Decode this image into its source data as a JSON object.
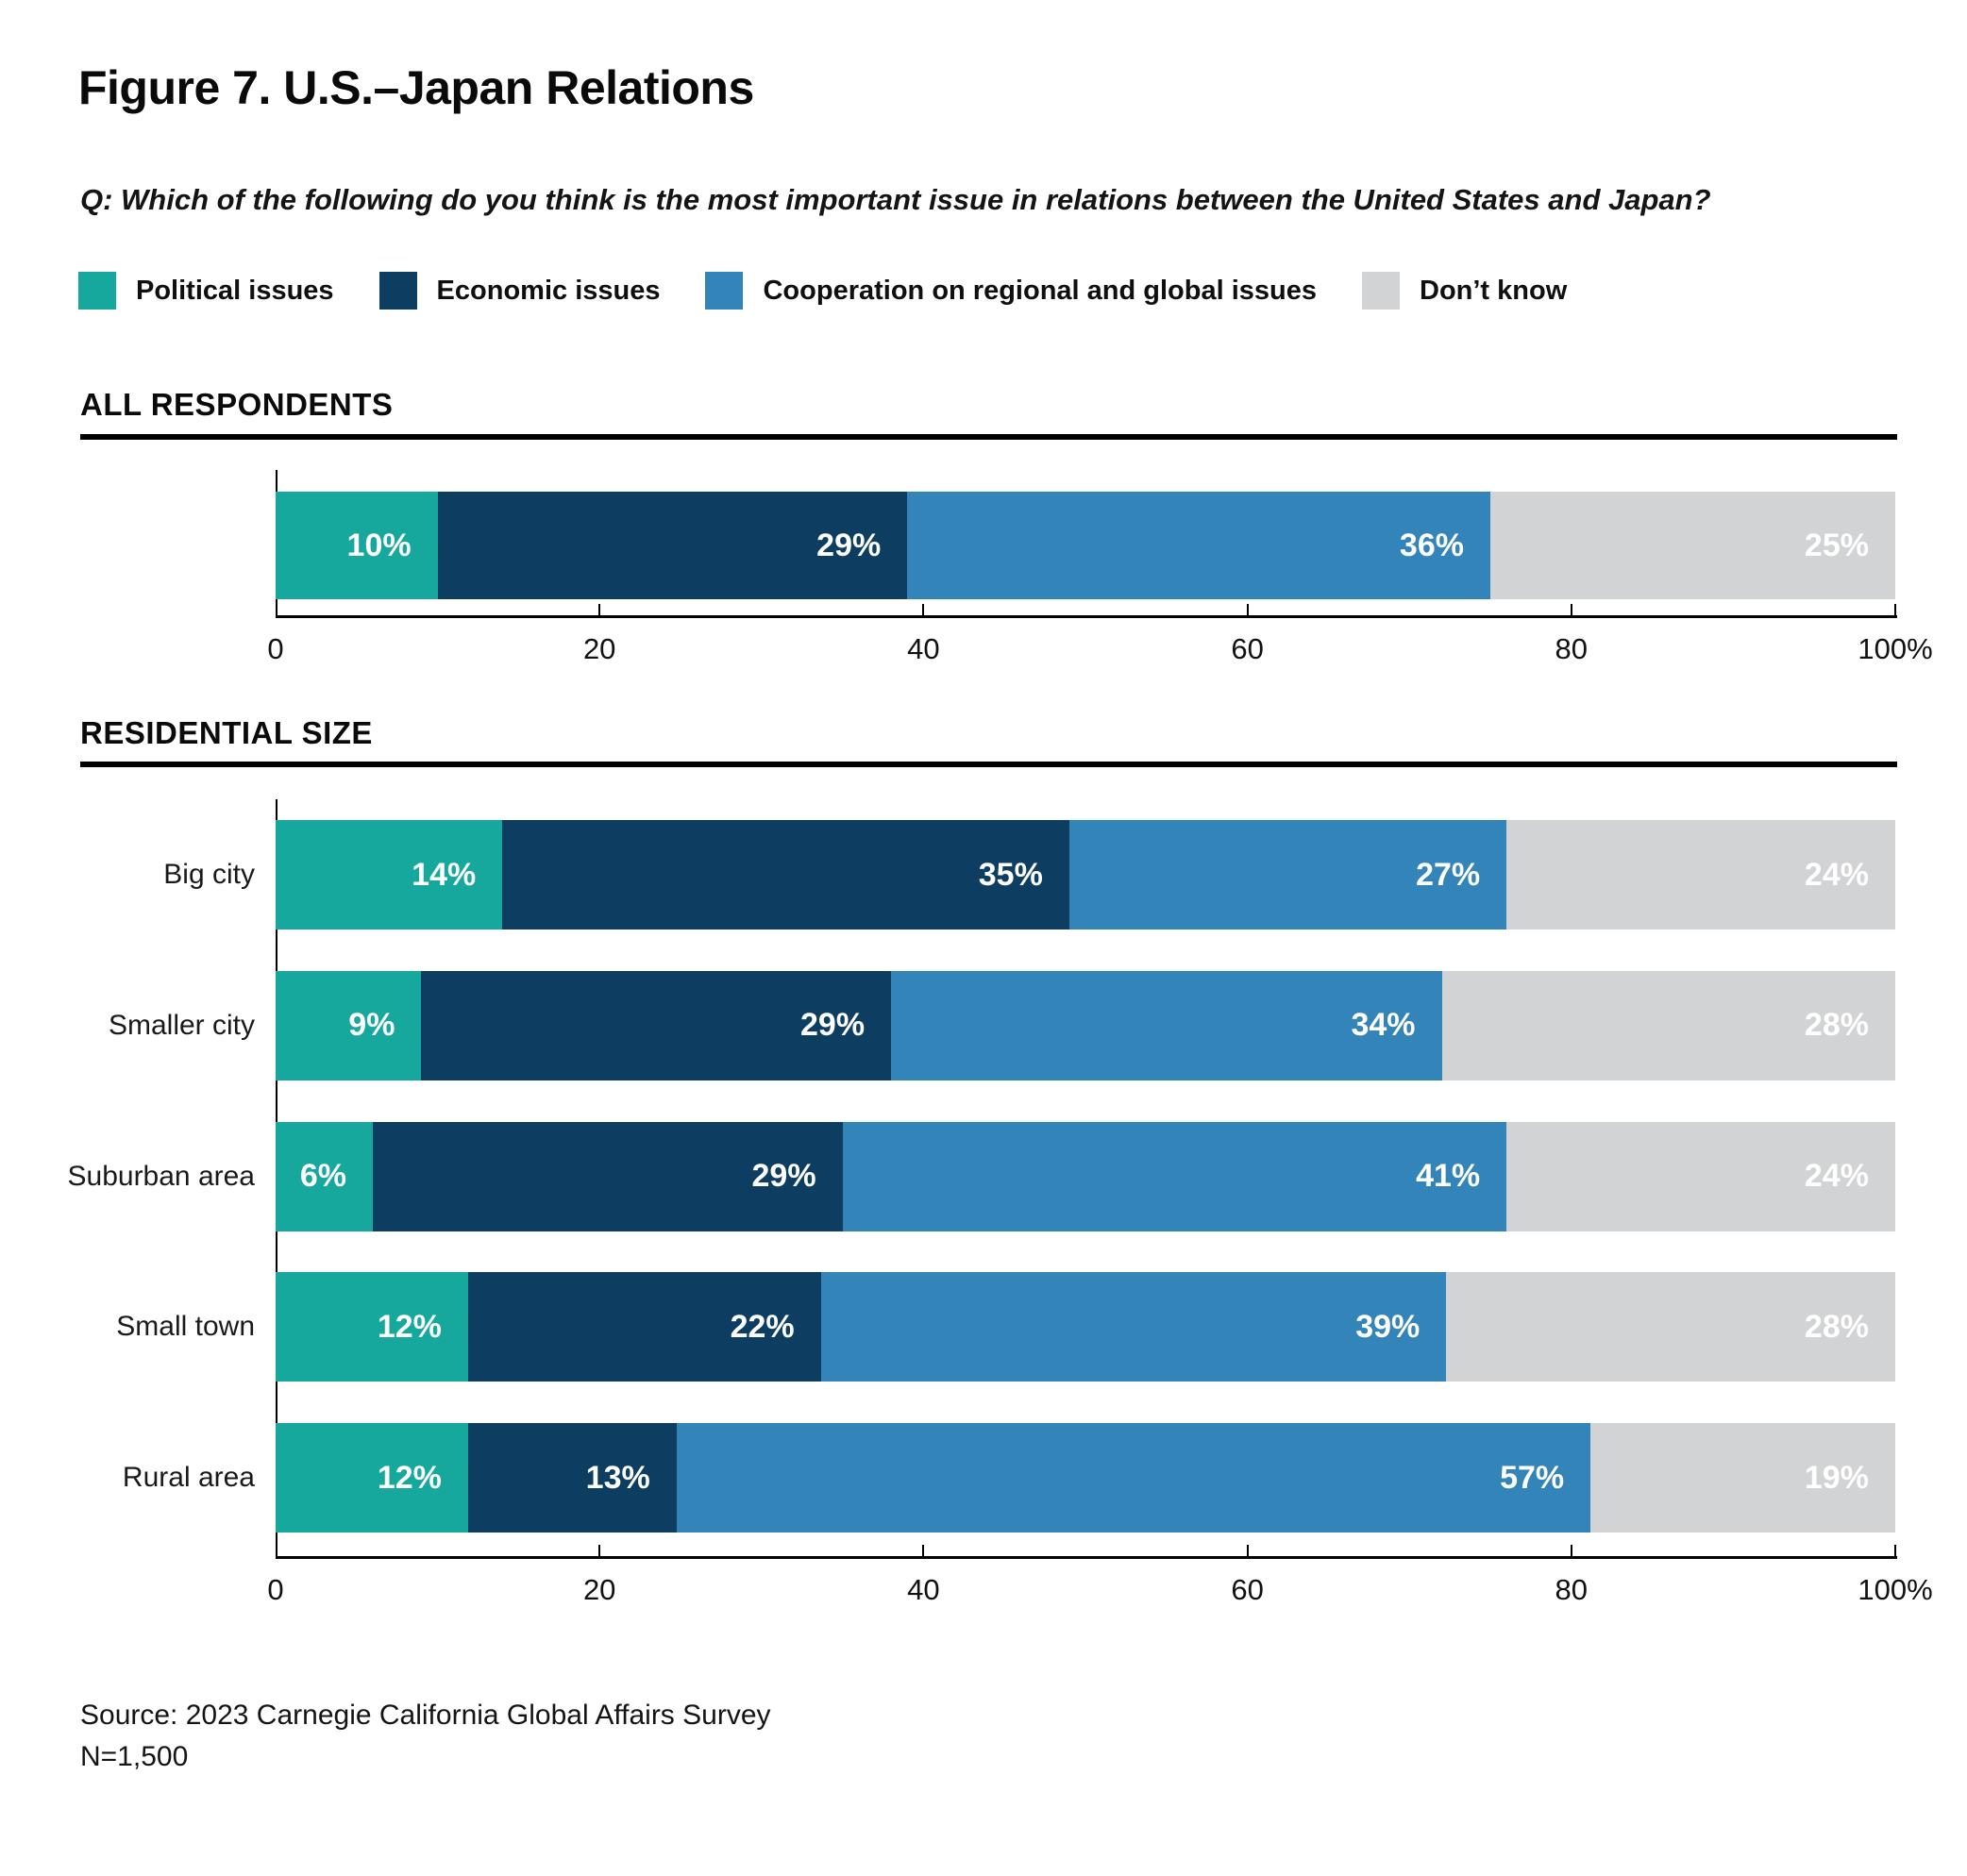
{
  "title": "Figure 7. U.S.–Japan Relations",
  "question": "Q: Which of the following do you think is the most important issue in relations between the United States and Japan?",
  "legend": [
    {
      "label": "Political issues",
      "color": "#16A89D"
    },
    {
      "label": "Economic issues",
      "color": "#0D3D61"
    },
    {
      "label": "Cooperation on regional and global issues",
      "color": "#3384B8"
    },
    {
      "label": "Don’t know",
      "color": "#D2D3D4"
    }
  ],
  "sections": {
    "all_respondents": "ALL RESPONDENTS",
    "residential_size": "RESIDENTIAL SIZE"
  },
  "source": {
    "line1": "Source: 2023 Carnegie California Global Affairs Survey",
    "line2": "N=1,500"
  },
  "chart_data": [
    {
      "type": "bar",
      "stacked": true,
      "orientation": "horizontal",
      "section": "ALL RESPONDENTS",
      "categories": [
        ""
      ],
      "series": [
        {
          "name": "Political issues",
          "values": [
            10
          ]
        },
        {
          "name": "Economic issues",
          "values": [
            29
          ]
        },
        {
          "name": "Cooperation on regional and global issues",
          "values": [
            36
          ]
        },
        {
          "name": "Don’t know",
          "values": [
            25
          ]
        }
      ],
      "xlim": [
        0,
        100
      ],
      "xticks": [
        0,
        20,
        40,
        60,
        80,
        100
      ],
      "xtick_labels": [
        "0",
        "20",
        "40",
        "60",
        "80",
        "100%"
      ],
      "value_suffix": "%",
      "grid": false,
      "legend_position": "top"
    },
    {
      "type": "bar",
      "stacked": true,
      "orientation": "horizontal",
      "section": "RESIDENTIAL SIZE",
      "categories": [
        "Big city",
        "Smaller city",
        "Suburban area",
        "Small town",
        "Rural area"
      ],
      "series": [
        {
          "name": "Political issues",
          "values": [
            14,
            9,
            6,
            12,
            12
          ]
        },
        {
          "name": "Economic issues",
          "values": [
            35,
            29,
            29,
            22,
            13
          ]
        },
        {
          "name": "Cooperation on regional and global issues",
          "values": [
            27,
            34,
            41,
            39,
            57
          ]
        },
        {
          "name": "Don’t know",
          "values": [
            24,
            28,
            24,
            28,
            19
          ]
        }
      ],
      "xlim": [
        0,
        100
      ],
      "xticks": [
        0,
        20,
        40,
        60,
        80,
        100
      ],
      "xtick_labels": [
        "0",
        "20",
        "40",
        "60",
        "80",
        "100%"
      ],
      "value_suffix": "%",
      "grid": false,
      "legend_position": "top"
    }
  ]
}
